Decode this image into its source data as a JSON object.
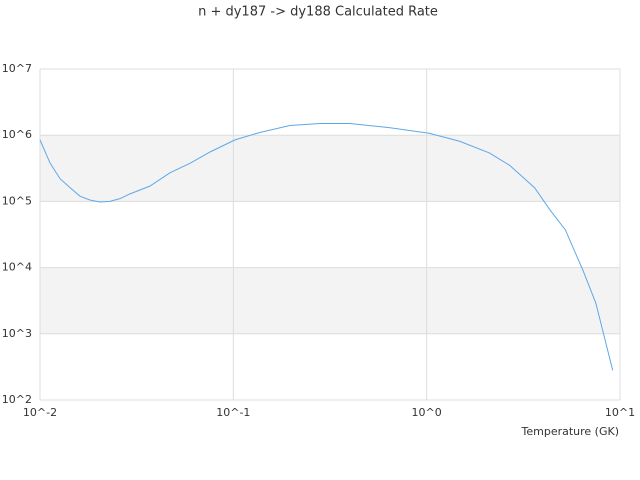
{
  "chart_data": {
    "type": "line",
    "title": "n + dy187 -> dy188 Calculated Rate",
    "x_label": "Temperature (GK)",
    "x": [
      0.01,
      0.01127,
      0.0127,
      0.01435,
      0.0161,
      0.0181,
      0.0204,
      0.023,
      0.0259,
      0.0292,
      0.037,
      0.047,
      0.06,
      0.076,
      0.102,
      0.137,
      0.196,
      0.28,
      0.4,
      0.64,
      1.03,
      1.48,
      2.11,
      2.69,
      3.62,
      4.35,
      5.22,
      6.42,
      7.5,
      9.17
    ],
    "series": [
      {
        "name": "Calculated Rate",
        "color": "#5ea8e8",
        "values": [
          850000,
          380000,
          220000,
          160000,
          120000,
          105000,
          98000,
          100000,
          110000,
          130000,
          170000,
          270000,
          380000,
          560000,
          850000,
          1100000,
          1400000,
          1500000,
          1500000,
          1300000,
          1070000,
          810000,
          540000,
          350000,
          160000,
          74000,
          37000,
          9200,
          2900,
          280
        ]
      }
    ],
    "xlim": [
      0.01,
      10
    ],
    "ylim": [
      100,
      10000000
    ],
    "xscale": "log",
    "yscale": "log",
    "xticks": [
      {
        "value": 0.01,
        "label": "10^-2"
      },
      {
        "value": 0.1,
        "label": "10^-1"
      },
      {
        "value": 1,
        "label": "10^0"
      },
      {
        "value": 10,
        "label": "10^1"
      }
    ],
    "yticks": [
      {
        "value": 100,
        "label": "10^2"
      },
      {
        "value": 1000,
        "label": "10^3"
      },
      {
        "value": 10000,
        "label": "10^4"
      },
      {
        "value": 100000,
        "label": "10^5"
      },
      {
        "value": 1000000,
        "label": "10^6"
      },
      {
        "value": 10000000,
        "label": "10^7"
      }
    ],
    "grid": true,
    "banded_grid": true
  }
}
